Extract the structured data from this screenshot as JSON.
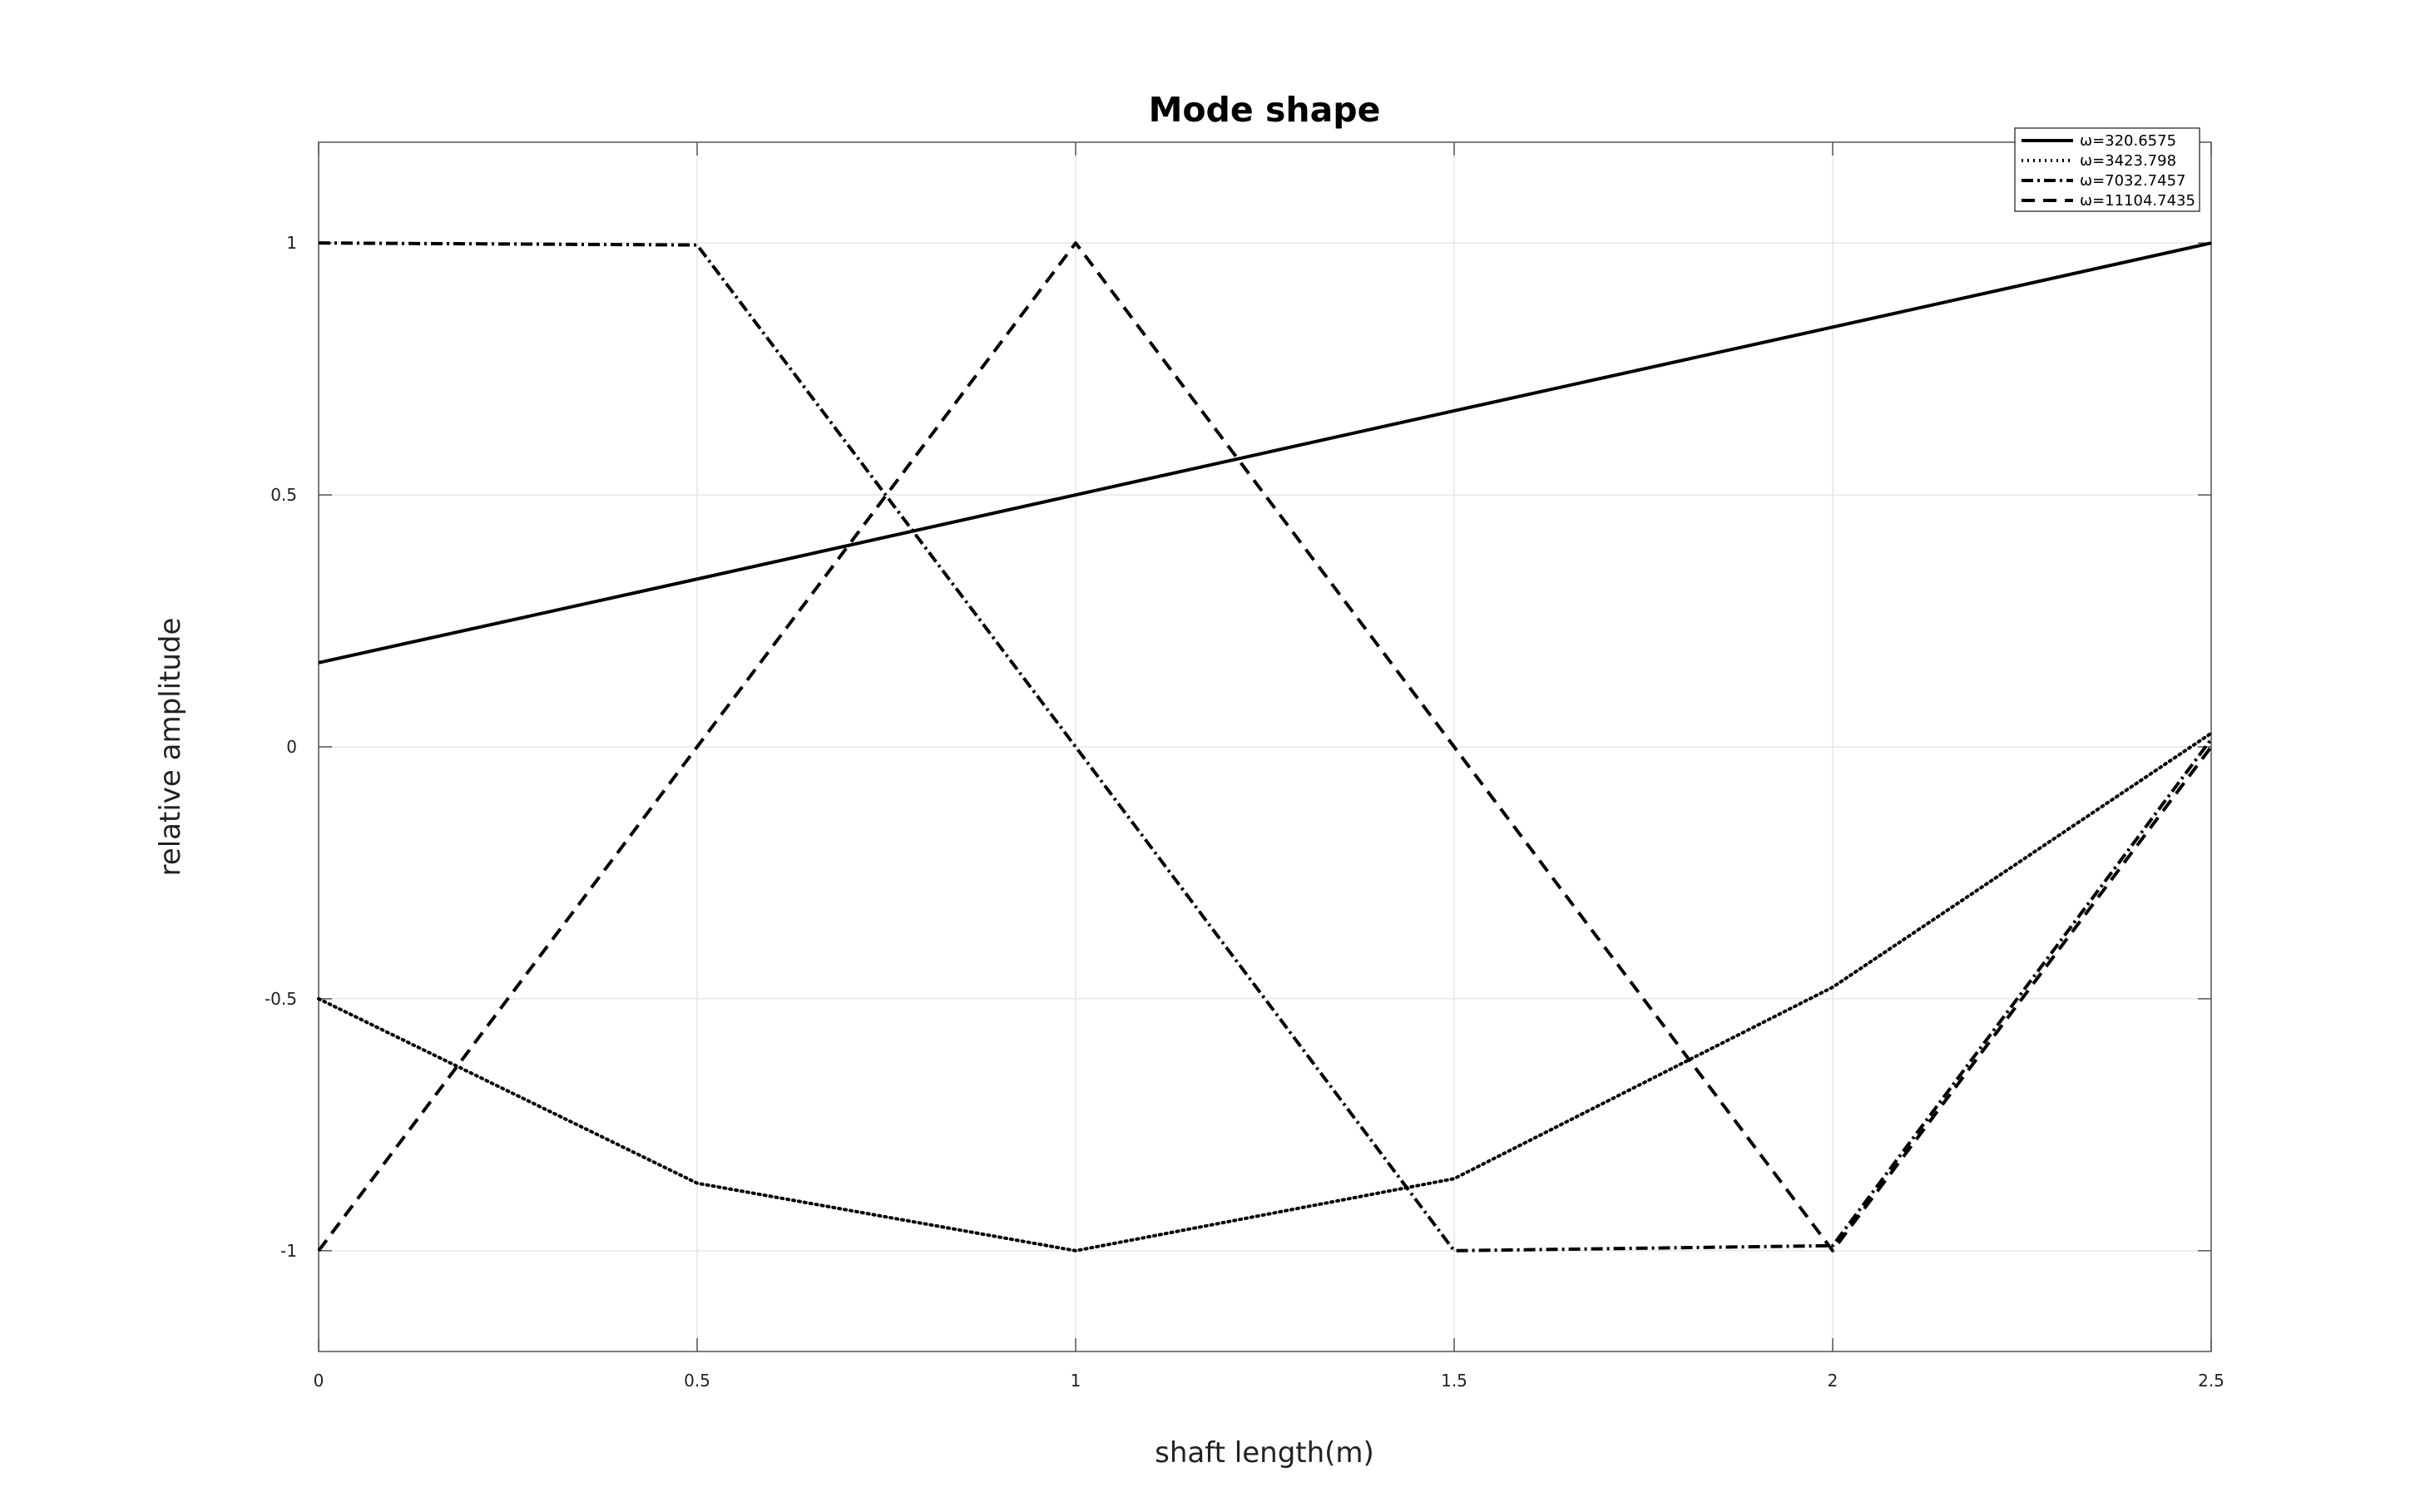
{
  "chart_data": {
    "type": "line",
    "title": "Mode shape",
    "xlabel": "shaft length(m)",
    "ylabel": "relative amplitude",
    "xlim": [
      0,
      2.5
    ],
    "ylim": [
      -1.2,
      1.2
    ],
    "x": [
      0,
      0.5,
      1,
      1.5,
      2,
      2.5
    ],
    "x_ticks": [
      0,
      0.5,
      1,
      1.5,
      2,
      2.5
    ],
    "x_tick_labels": [
      "0",
      "0.5",
      "1",
      "1.5",
      "2",
      "2.5"
    ],
    "y_ticks": [
      -1,
      -0.5,
      0,
      0.5,
      1
    ],
    "y_tick_labels": [
      "-1",
      "-0.5",
      "0",
      "0.5",
      "1"
    ],
    "grid": true,
    "legend_position": "top-right",
    "series": [
      {
        "name": "ω=320.6575",
        "style": "solid",
        "color": "#000000",
        "values": [
          0.167,
          0.333,
          0.5,
          0.667,
          0.833,
          1.0
        ]
      },
      {
        "name": "ω=3423.798",
        "style": "dotted",
        "color": "#000000",
        "values": [
          -0.5,
          -0.866,
          -1.0,
          -0.857,
          -0.477,
          0.027
        ]
      },
      {
        "name": "ω=7032.7457",
        "style": "dashdot",
        "color": "#000000",
        "values": [
          1.0,
          0.996,
          0.0,
          -1.0,
          -0.99,
          0.015
        ]
      },
      {
        "name": "ω=11104.7435",
        "style": "dashed",
        "color": "#000000",
        "values": [
          -1.0,
          0.0,
          1.0,
          0.0,
          -1.0,
          0.0
        ]
      }
    ]
  }
}
